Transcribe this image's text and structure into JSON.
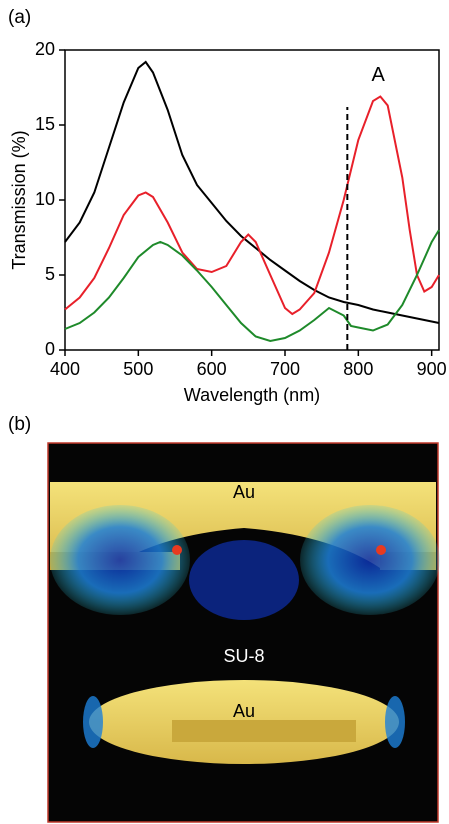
{
  "chart_data": {
    "type": "line",
    "xlabel": "Wavelength (nm)",
    "ylabel": "Transmission (%)",
    "xlim": [
      400,
      910
    ],
    "ylim": [
      0,
      20
    ],
    "xticks": [
      400,
      500,
      600,
      700,
      800,
      900
    ],
    "yticks": [
      0,
      5,
      10,
      15,
      20
    ],
    "series": [
      {
        "color": "#000000",
        "x": [
          400,
          420,
          440,
          460,
          480,
          500,
          510,
          520,
          540,
          560,
          580,
          600,
          620,
          640,
          660,
          680,
          700,
          720,
          740,
          760,
          780,
          800,
          820,
          840,
          860,
          880,
          900,
          910
        ],
        "values": [
          7.2,
          8.5,
          10.5,
          13.5,
          16.5,
          18.8,
          19.2,
          18.5,
          16,
          13,
          11,
          9.8,
          8.6,
          7.6,
          6.8,
          6,
          5.3,
          4.6,
          4,
          3.5,
          3.2,
          3,
          2.7,
          2.5,
          2.3,
          2.1,
          1.9,
          1.8
        ]
      },
      {
        "color": "#e8202a",
        "x": [
          400,
          420,
          440,
          460,
          480,
          500,
          510,
          520,
          540,
          560,
          580,
          600,
          620,
          640,
          650,
          660,
          680,
          700,
          710,
          720,
          740,
          760,
          780,
          800,
          820,
          830,
          840,
          860,
          870,
          880,
          890,
          900,
          910
        ],
        "values": [
          2.7,
          3.5,
          4.8,
          6.8,
          9,
          10.3,
          10.5,
          10.2,
          8.5,
          6.5,
          5.4,
          5.2,
          5.6,
          7.2,
          7.7,
          7.2,
          5,
          2.8,
          2.4,
          2.7,
          3.8,
          6.5,
          10,
          14,
          16.6,
          16.9,
          16.3,
          11.5,
          8,
          5,
          3.9,
          4.2,
          5
        ]
      },
      {
        "color": "#1e8a2a",
        "x": [
          400,
          420,
          440,
          460,
          480,
          500,
          520,
          530,
          540,
          560,
          580,
          600,
          620,
          640,
          660,
          680,
          700,
          720,
          740,
          760,
          780,
          790,
          800,
          820,
          840,
          860,
          880,
          900,
          910
        ],
        "values": [
          1.4,
          1.8,
          2.5,
          3.5,
          4.8,
          6.2,
          7,
          7.2,
          7,
          6.3,
          5.3,
          4.2,
          3,
          1.8,
          0.9,
          0.6,
          0.8,
          1.3,
          2,
          2.8,
          2.3,
          1.6,
          1.5,
          1.3,
          1.7,
          3,
          5,
          7.2,
          8
        ]
      }
    ],
    "vline": {
      "x": 785,
      "top": 16.2
    },
    "annotation": {
      "text": "A",
      "x": 827,
      "y": 18.3
    }
  },
  "figure": {
    "label_a": "(a)",
    "label_b": "(b)",
    "image_labels": [
      "Au",
      "SU-8",
      "Au"
    ]
  }
}
